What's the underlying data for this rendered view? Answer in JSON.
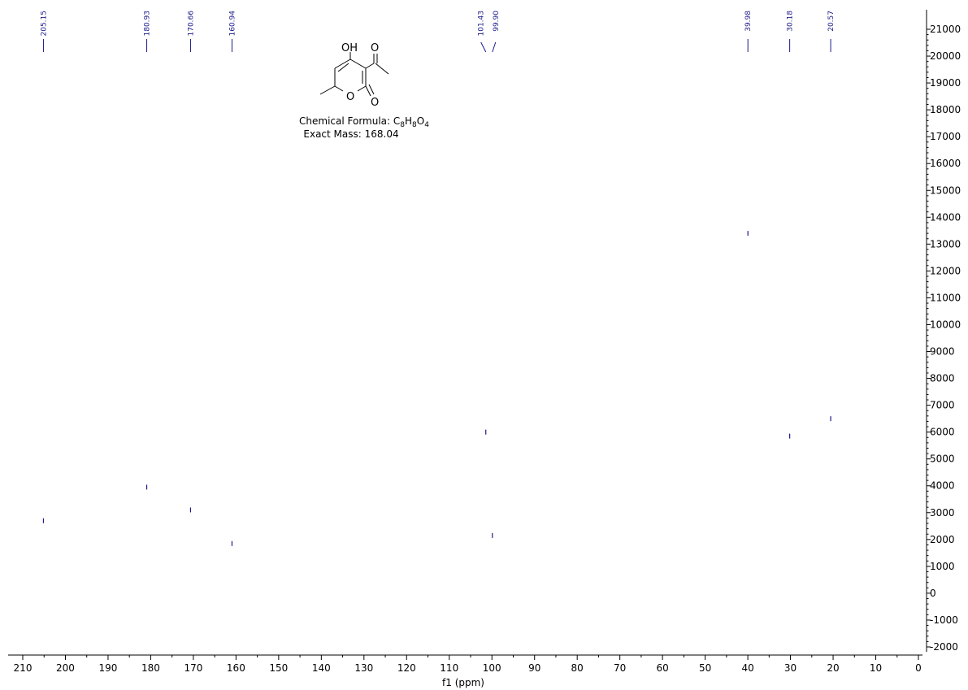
{
  "chart_data": {
    "type": "scatter",
    "title": "",
    "xlabel": "f1 (ppm)",
    "ylabel": "",
    "xlim": [
      210,
      0
    ],
    "ylim": [
      -2000,
      21000
    ],
    "x_ticks": [
      210,
      200,
      190,
      180,
      170,
      160,
      150,
      140,
      130,
      120,
      110,
      100,
      90,
      80,
      70,
      60,
      50,
      40,
      30,
      20,
      10,
      0
    ],
    "y_ticks": [
      -2000,
      -1000,
      0,
      1000,
      2000,
      3000,
      4000,
      5000,
      6000,
      7000,
      8000,
      9000,
      10000,
      11000,
      12000,
      13000,
      14000,
      15000,
      16000,
      17000,
      18000,
      19000,
      20000,
      21000
    ],
    "peak_labels": [
      "205.15",
      "180.93",
      "170.66",
      "160.94",
      "101.43",
      "99.90",
      "39.98",
      "30.18",
      "20.57"
    ],
    "series": [
      {
        "x": [
          205.15,
          180.93,
          170.66,
          160.94,
          101.43,
          99.9,
          39.98,
          30.18,
          20.57
        ],
        "y": [
          2700,
          3950,
          3100,
          1850,
          6000,
          2150,
          13400,
          5850,
          6500
        ]
      }
    ],
    "grid": false,
    "color": "#1a1a8c"
  },
  "compound": {
    "atom_oh": "OH",
    "atom_o_carbonyl": "O",
    "atom_o_ring": "O",
    "atom_o_lactone": "O",
    "formula_prefix": "Chemical Formula: ",
    "formula_parts": [
      {
        "t": "C",
        "sub": false
      },
      {
        "t": "8",
        "sub": true
      },
      {
        "t": "H",
        "sub": false
      },
      {
        "t": "8",
        "sub": true
      },
      {
        "t": "O",
        "sub": false
      },
      {
        "t": "4",
        "sub": true
      }
    ],
    "exact_mass": "Exact Mass: 168.04"
  }
}
